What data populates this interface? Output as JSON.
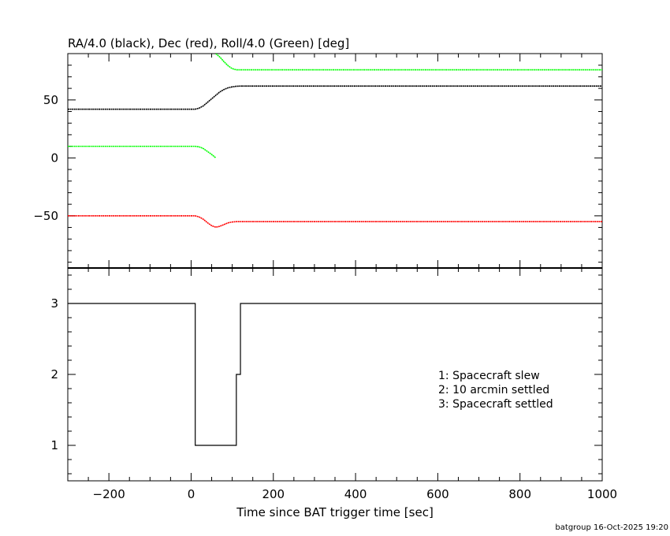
{
  "chart_data": [
    {
      "type": "line",
      "title": "RA/4.0 (black), Dec (red), Roll/4.0 (Green) [deg]",
      "xlim": [
        -300,
        1000
      ],
      "ylim": [
        -95,
        90
      ],
      "yticks": [
        -50,
        0,
        50
      ],
      "yticks_labels": [
        "−50",
        "0",
        "50"
      ],
      "series": [
        {
          "color": "#000000",
          "x": [
            -300,
            0,
            10,
            20,
            30,
            40,
            50,
            60,
            70,
            80,
            90,
            100,
            110,
            120,
            1000
          ],
          "y": [
            42,
            42,
            42,
            43,
            45,
            48,
            51,
            54,
            57,
            59,
            60.5,
            61.3,
            61.8,
            62,
            62
          ]
        },
        {
          "color": "#ff0000",
          "x": [
            -300,
            0,
            10,
            20,
            30,
            40,
            50,
            60,
            70,
            80,
            90,
            100,
            110,
            120,
            1000
          ],
          "y": [
            -50,
            -50,
            -50,
            -51,
            -53,
            -56,
            -58.5,
            -59.8,
            -59,
            -57.5,
            -56,
            -55.3,
            -55,
            -55,
            -55
          ]
        },
        {
          "color": "#00ff00",
          "x": [
            -300,
            0,
            10,
            20,
            30,
            40,
            50,
            60
          ],
          "y": [
            10,
            10,
            10,
            9.5,
            8,
            5.5,
            3,
            0
          ]
        },
        {
          "color": "#00ff00",
          "x": [
            60,
            70,
            80,
            90,
            100,
            110,
            120,
            1000
          ],
          "y": [
            90,
            87,
            83,
            79.5,
            77,
            76,
            76,
            76
          ]
        }
      ]
    },
    {
      "type": "line",
      "step": true,
      "xlabel": "Time since BAT trigger time [sec]",
      "xlim": [
        -300,
        1000
      ],
      "ylim": [
        0.5,
        3.5
      ],
      "xticks": [
        -200,
        0,
        200,
        400,
        600,
        800,
        1000
      ],
      "xticks_labels": [
        "−200",
        "0",
        "200",
        "400",
        "600",
        "800",
        "1000"
      ],
      "yticks": [
        1,
        2,
        3
      ],
      "yticks_labels": [
        "1",
        "2",
        "3"
      ],
      "series": [
        {
          "color": "#000000",
          "x": [
            -300,
            10,
            10,
            110,
            110,
            120,
            120,
            1000
          ],
          "y": [
            3,
            3,
            1,
            1,
            2,
            2,
            3,
            3
          ]
        }
      ],
      "legend": [
        "1: Spacecraft slew",
        "2: 10 arcmin settled",
        "3: Spacecraft settled"
      ]
    }
  ],
  "footer": "batgroup 16-Oct-2025 19:20"
}
